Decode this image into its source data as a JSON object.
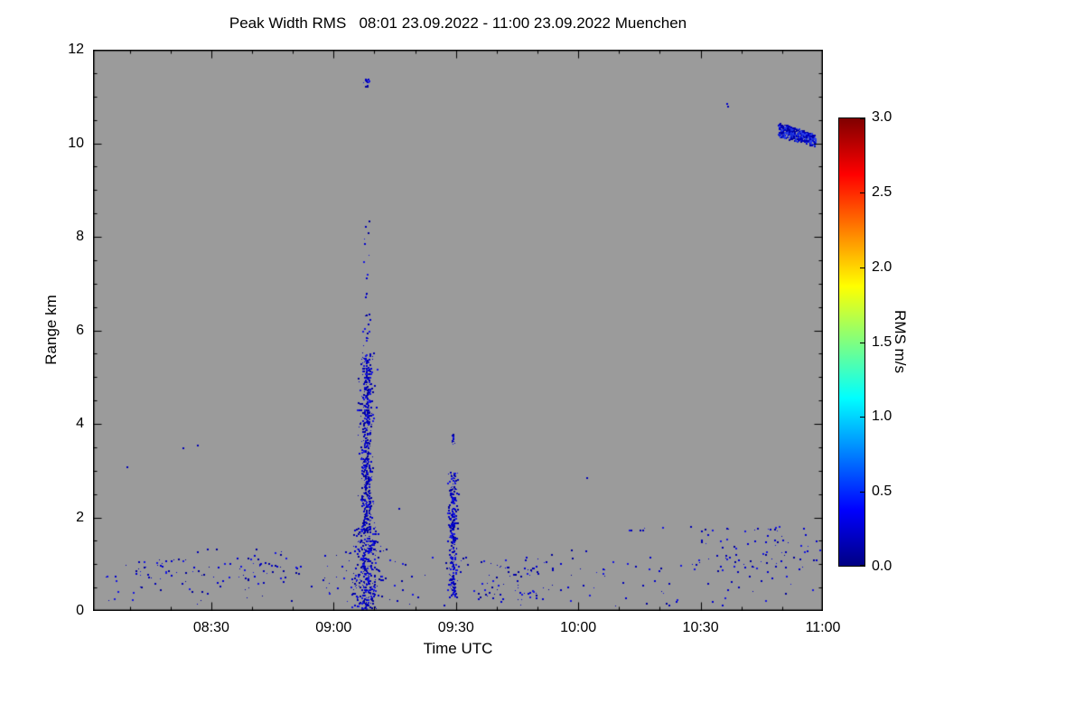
{
  "chart_data": {
    "type": "scatter",
    "title": "Peak Width RMS   08:01 23.09.2022 - 11:00 23.09.2022 Muenchen",
    "background_color": "#9b9b9b",
    "frame_color": "#000000",
    "point_colors": [
      "#00009a",
      "#0000b4",
      "#0000cd",
      "#1717e0"
    ],
    "x_axis": {
      "label": "Time UTC",
      "tick_labels": [
        "08:30",
        "09:00",
        "09:30",
        "10:00",
        "10:30",
        "11:00"
      ],
      "tick_minutes": [
        510,
        540,
        570,
        600,
        630,
        660
      ],
      "min_minutes": 481,
      "max_minutes": 660,
      "minor_step_minutes": 10,
      "range_text": [
        "08:01",
        "11:00"
      ]
    },
    "y_axis": {
      "label": "Range km",
      "tick_labels": [
        "0",
        "2",
        "4",
        "6",
        "8",
        "10",
        "12"
      ],
      "tick_values": [
        0,
        2,
        4,
        6,
        8,
        10,
        12
      ],
      "min": 0,
      "max": 12,
      "minor_step": 0.5
    },
    "colorbar": {
      "label": "RMS m/s",
      "tick_labels": [
        "0.0",
        "0.5",
        "1.0",
        "1.5",
        "2.0",
        "2.5",
        "3.0"
      ],
      "tick_values": [
        0,
        0.5,
        1,
        1.5,
        2,
        2.5,
        3
      ],
      "min": 0,
      "max": 3,
      "gradient_stops": [
        [
          "0%",
          "#000083"
        ],
        [
          "12.5%",
          "#0000ff"
        ],
        [
          "37.5%",
          "#00ffff"
        ],
        [
          "62.5%",
          "#ffff00"
        ],
        [
          "87.5%",
          "#ff0000"
        ],
        [
          "100%",
          "#800000"
        ]
      ]
    },
    "clusters": [
      {
        "name": "main-plume-core",
        "seed": 101,
        "count": 480,
        "t": {
          "dist": "gauss",
          "center": 548.0,
          "sigma": 0.8
        },
        "r": {
          "dist": "uniform",
          "min": 1.7,
          "max": 5.55
        }
      },
      {
        "name": "main-plume-lower",
        "seed": 102,
        "count": 330,
        "t": {
          "dist": "gauss",
          "center": 548.0,
          "sigma": 1.6
        },
        "r": {
          "dist": "uniform",
          "min": 0.05,
          "max": 1.8
        }
      },
      {
        "name": "main-plume-upper-sparse",
        "seed": 103,
        "count": 26,
        "t": {
          "dist": "gauss",
          "center": 548.0,
          "sigma": 0.4
        },
        "r": {
          "dist": "uniform",
          "min": 5.6,
          "max": 8.5
        }
      },
      {
        "name": "main-plume-top-dots",
        "seed": 104,
        "count": 14,
        "t": {
          "dist": "gauss",
          "center": 547.8,
          "sigma": 0.4
        },
        "r": {
          "dist": "uniform",
          "min": 11.2,
          "max": 11.4
        }
      },
      {
        "name": "second-plume",
        "seed": 105,
        "count": 270,
        "t": {
          "dist": "gauss",
          "center": 569.2,
          "sigma": 0.55
        },
        "r": {
          "dist": "uniform",
          "min": 0.3,
          "max": 3.0
        }
      },
      {
        "name": "second-plume-top",
        "seed": 106,
        "count": 12,
        "t": {
          "dist": "gauss",
          "center": 569.4,
          "sigma": 0.3
        },
        "r": {
          "dist": "uniform",
          "min": 3.55,
          "max": 3.8
        }
      },
      {
        "name": "cloud-blob-high",
        "seed": 107,
        "count": 430,
        "t": {
          "dist": "uniform",
          "min": 649.0,
          "max": 658.0
        },
        "band": {
          "start_lo": 10.15,
          "start_hi": 10.45,
          "end_lo": 9.95,
          "end_hi": 10.2
        },
        "colors": [
          "#0000c0",
          "#1a2fd8",
          "#2a3fe8",
          "#0000a0"
        ]
      },
      {
        "name": "high-isolated-dot",
        "seed": 108,
        "count": 5,
        "t": {
          "dist": "uniform",
          "min": 636.2,
          "max": 637.0
        },
        "r": {
          "dist": "uniform",
          "min": 10.76,
          "max": 10.88
        }
      },
      {
        "name": "boundary-layer-noise",
        "seed": 109,
        "count": 230,
        "t": {
          "dist": "uniform",
          "min": 483.5,
          "max": 659.5
        },
        "r": {
          "dist": "uniform",
          "min": 0.12,
          "max": 1.35
        }
      },
      {
        "name": "bl-clump-early",
        "seed": 110,
        "count": 55,
        "t": {
          "dist": "uniform",
          "min": 491,
          "max": 534
        },
        "r": {
          "dist": "uniform",
          "min": 0.65,
          "max": 1.15
        }
      },
      {
        "name": "bl-clump-mid",
        "seed": 111,
        "count": 45,
        "t": {
          "dist": "uniform",
          "min": 575,
          "max": 590
        },
        "r": {
          "dist": "uniform",
          "min": 0.2,
          "max": 1.0
        }
      },
      {
        "name": "bl-clump-late",
        "seed": 112,
        "count": 60,
        "t": {
          "dist": "uniform",
          "min": 625,
          "max": 659
        },
        "r": {
          "dist": "uniform",
          "min": 0.85,
          "max": 1.8
        }
      },
      {
        "name": "late-thin-line",
        "seed": 113,
        "count": 14,
        "t": {
          "dist": "uniform",
          "min": 608,
          "max": 658
        },
        "r": {
          "dist": "uniform",
          "min": 1.7,
          "max": 1.82
        }
      }
    ],
    "singles": [
      [
        489.2,
        3.1
      ],
      [
        503,
        3.5
      ],
      [
        506.5,
        3.55
      ],
      [
        555.9,
        2.2
      ],
      [
        602,
        2.86
      ],
      [
        615,
        1.74
      ],
      [
        615.8,
        1.74
      ]
    ]
  },
  "layout_note": ""
}
